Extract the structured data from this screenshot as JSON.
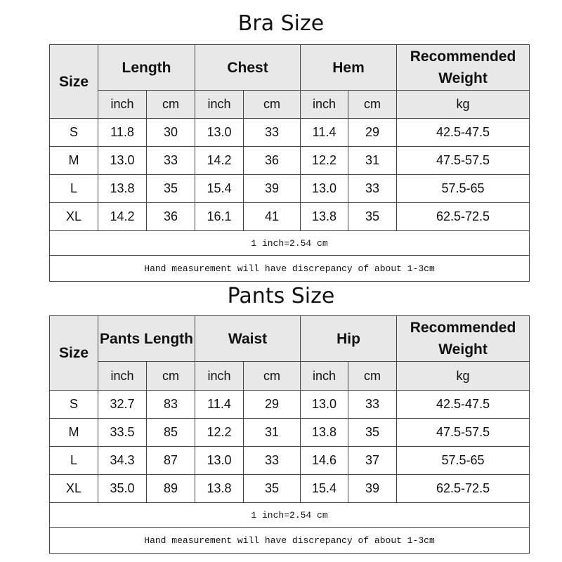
{
  "bra": {
    "title": "Bra Size",
    "headers": [
      "Size",
      "Length",
      "Chest",
      "Hem",
      "Recommended Weight"
    ],
    "units": [
      "inch",
      "cm",
      "inch",
      "cm",
      "inch",
      "cm",
      "kg"
    ],
    "rows": [
      [
        "S",
        "11.8",
        "30",
        "13.0",
        "33",
        "11.4",
        "29",
        "42.5-47.5"
      ],
      [
        "M",
        "13.0",
        "33",
        "14.2",
        "36",
        "12.2",
        "31",
        "47.5-57.5"
      ],
      [
        "L",
        "13.8",
        "35",
        "15.4",
        "39",
        "13.0",
        "33",
        "57.5-65"
      ],
      [
        "XL",
        "14.2",
        "36",
        "16.1",
        "41",
        "13.8",
        "35",
        "62.5-72.5"
      ]
    ],
    "notes": [
      "1 inch=2.54 cm",
      "Hand measurement will have discrepancy of about 1-3cm"
    ]
  },
  "pants": {
    "title": "Pants Size",
    "headers": [
      "Size",
      "Pants Length",
      "Waist",
      "Hip",
      "Recommended Weight"
    ],
    "units": [
      "inch",
      "cm",
      "inch",
      "cm",
      "inch",
      "cm",
      "kg"
    ],
    "rows": [
      [
        "S",
        "32.7",
        "83",
        "11.4",
        "29",
        "13.0",
        "33",
        "42.5-47.5"
      ],
      [
        "M",
        "33.5",
        "85",
        "12.2",
        "31",
        "13.8",
        "35",
        "47.5-57.5"
      ],
      [
        "L",
        "34.3",
        "87",
        "13.0",
        "33",
        "14.6",
        "37",
        "57.5-65"
      ],
      [
        "XL",
        "35.0",
        "89",
        "13.8",
        "35",
        "15.4",
        "39",
        "62.5-72.5"
      ]
    ],
    "notes": [
      "1 inch=2.54 cm",
      "Hand measurement will have discrepancy of about 1-3cm"
    ]
  }
}
